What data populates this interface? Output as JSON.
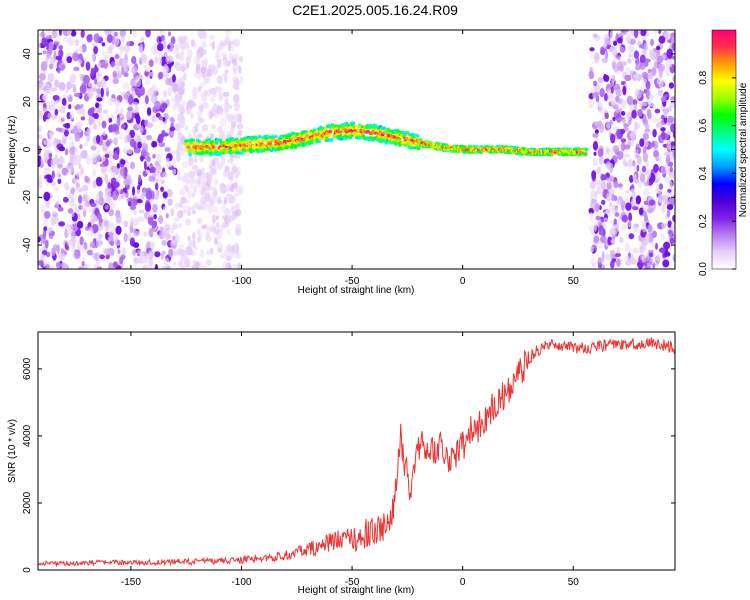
{
  "title": "C2E1.2025.005.16.24.R09",
  "chart_data": [
    {
      "type": "heatmap",
      "xlabel": "Height of straight line (km)",
      "ylabel": "Frequency (Hz)",
      "xlim": [
        -192,
        96
      ],
      "ylim": [
        -50,
        50
      ],
      "xticks": [
        -150,
        -100,
        -50,
        0,
        50
      ],
      "yticks": [
        -40,
        -20,
        0,
        20,
        40
      ],
      "grid": false,
      "colorbar": {
        "label": "Normalized spectral amplitude",
        "range": [
          0,
          1
        ],
        "ticks": [
          0.0,
          0.2,
          0.4,
          0.6,
          0.8
        ],
        "colormap": [
          "#ffffff",
          "#e6cff7",
          "#b77cf0",
          "#7f1fe6",
          "#4a00d8",
          "#0000ff",
          "#00a0ff",
          "#00ffff",
          "#00ff80",
          "#00ff00",
          "#a0ff00",
          "#ffff00",
          "#ffa000",
          "#ff3050",
          "#ff0070"
        ]
      },
      "ridge": {
        "x": [
          -125,
          -110,
          -95,
          -80,
          -70,
          -60,
          -50,
          -40,
          -30,
          -20,
          -10,
          0,
          10,
          20,
          30,
          40,
          50,
          56
        ],
        "frequency": [
          1,
          1,
          2,
          3,
          5,
          7,
          8,
          7,
          5,
          3,
          1,
          0,
          0,
          0,
          -1,
          -1,
          -1,
          -1
        ]
      },
      "noise_regions": [
        [
          -192,
          -100
        ],
        [
          58,
          96
        ]
      ]
    },
    {
      "type": "line",
      "xlabel": "Height of straight line (km)",
      "ylabel": "SNR (10 * v/v)",
      "xlim": [
        -192,
        96
      ],
      "ylim": [
        0,
        7100
      ],
      "xticks": [
        -150,
        -100,
        -50,
        0,
        50
      ],
      "yticks": [
        0,
        2000,
        4000,
        6000
      ],
      "grid": false,
      "series": [
        {
          "color": "#ee3333",
          "x": [
            -192,
            -180,
            -170,
            -160,
            -150,
            -140,
            -130,
            -120,
            -110,
            -100,
            -95,
            -90,
            -85,
            -80,
            -75,
            -70,
            -65,
            -60,
            -55,
            -50,
            -45,
            -40,
            -35,
            -32,
            -30,
            -28,
            -26,
            -25,
            -24,
            -22,
            -20,
            -18,
            -16,
            -14,
            -12,
            -10,
            -8,
            -6,
            -4,
            -2,
            0,
            2,
            4,
            6,
            8,
            10,
            12,
            14,
            16,
            18,
            20,
            22,
            24,
            26,
            28,
            30,
            32,
            34,
            36,
            38,
            40,
            45,
            50,
            55,
            60,
            65,
            70,
            75,
            80,
            85,
            90,
            96
          ],
          "y": [
            200,
            200,
            210,
            220,
            220,
            230,
            240,
            250,
            270,
            300,
            320,
            350,
            380,
            450,
            520,
            600,
            700,
            820,
            900,
            980,
            1050,
            1150,
            1300,
            1700,
            2400,
            4000,
            2700,
            3200,
            2200,
            3100,
            3600,
            3900,
            3500,
            3700,
            3400,
            3800,
            3500,
            3300,
            3300,
            3600,
            3700,
            3900,
            4200,
            4100,
            4400,
            4500,
            4700,
            4900,
            5000,
            5200,
            5300,
            5500,
            5700,
            5900,
            6100,
            6300,
            6450,
            6550,
            6650,
            6700,
            6750,
            6700,
            6650,
            6600,
            6650,
            6700,
            6720,
            6700,
            6750,
            6780,
            6720,
            6600
          ]
        }
      ]
    }
  ]
}
